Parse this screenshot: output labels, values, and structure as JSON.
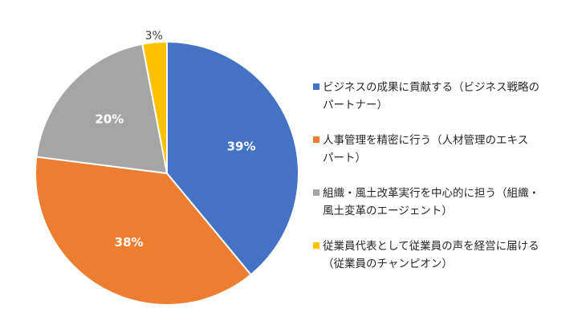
{
  "chart_data": {
    "type": "pie",
    "title": "",
    "slices": [
      {
        "label_lines": [
          "ビジネスの成果に貢献する（ビジネス戦略の",
          "パートナー）"
        ],
        "value": 39,
        "value_label": "39%",
        "color": "#4472C4",
        "label_color": "#ffffff"
      },
      {
        "label_lines": [
          "人事管理を精密に行う（人材管理のエキス",
          "パート）"
        ],
        "value": 38,
        "value_label": "38%",
        "color": "#ED7D31",
        "label_color": "#ffffff"
      },
      {
        "label_lines": [
          "組織・風土改革実行を中心的に担う（組織・",
          "風土変革のエージェント）"
        ],
        "value": 20,
        "value_label": "20%",
        "color": "#A5A5A5",
        "label_color": "#ffffff"
      },
      {
        "label_lines": [
          "従業員代表として従業員の声を経営に届ける",
          "（従業員のチャンピオン）"
        ],
        "value": 3,
        "value_label": "3%",
        "color": "#FFC000",
        "label_color": "#404040"
      }
    ],
    "legend_position": "right"
  }
}
